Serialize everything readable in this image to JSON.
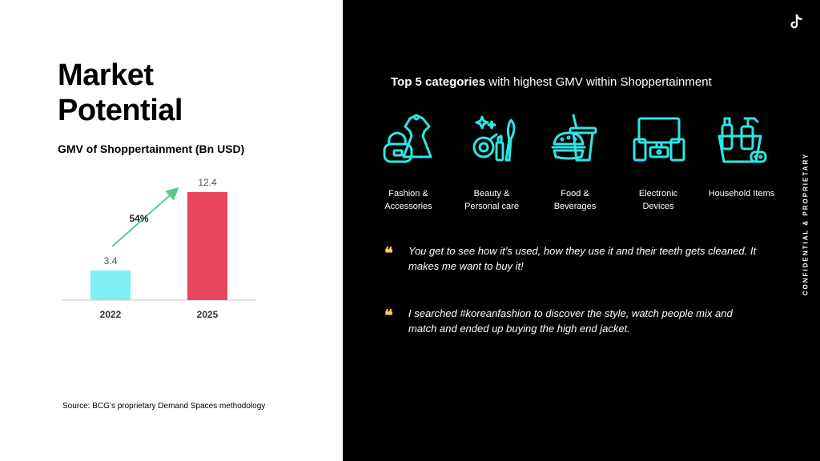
{
  "left": {
    "title_line1": "Market",
    "title_line2": "Potential",
    "subtitle": "GMV of Shoppertainment (Bn USD)",
    "source": "Source: BCG’s proprietary Demand Spaces methodology"
  },
  "chart_data": {
    "type": "bar",
    "title": "GMV of Shoppertainment (Bn USD)",
    "categories": [
      "2022",
      "2025"
    ],
    "values": [
      3.4,
      12.4
    ],
    "value_labels": [
      "3.4",
      "12.4"
    ],
    "bar_colors": [
      "#7ff0f2",
      "#e8455e"
    ],
    "growth_label": "54%",
    "growth_arrow_color": "#5fc98c",
    "grid": false,
    "ylim": [
      0,
      12.4
    ]
  },
  "right": {
    "headline_bold": "Top 5 categories",
    "headline_rest": " with highest GMV within Shoppertainment",
    "accent_color": "#2ee6e6",
    "categories": [
      {
        "label": "Fashion &\nAccessories",
        "icon": "fashion-icon"
      },
      {
        "label": "Beauty &\nPersonal care",
        "icon": "beauty-icon"
      },
      {
        "label": "Food &\nBeverages",
        "icon": "food-icon"
      },
      {
        "label": "Electronic\nDevices",
        "icon": "electronics-icon"
      },
      {
        "label": "Household Items",
        "icon": "household-icon"
      }
    ],
    "quotes": [
      {
        "mark": "❝",
        "text": "You get to see how it’s used, how they use it and their teeth gets cleaned. It makes me want to buy it!"
      },
      {
        "mark": "❝",
        "text": "I searched #koreanfashion to discover the style, watch people mix and match and ended up buying the high end jacket."
      }
    ],
    "vertical_text": "CONFIDENTIAL & PROPRIETARY",
    "logo_icon": "tiktok-logo-icon"
  }
}
